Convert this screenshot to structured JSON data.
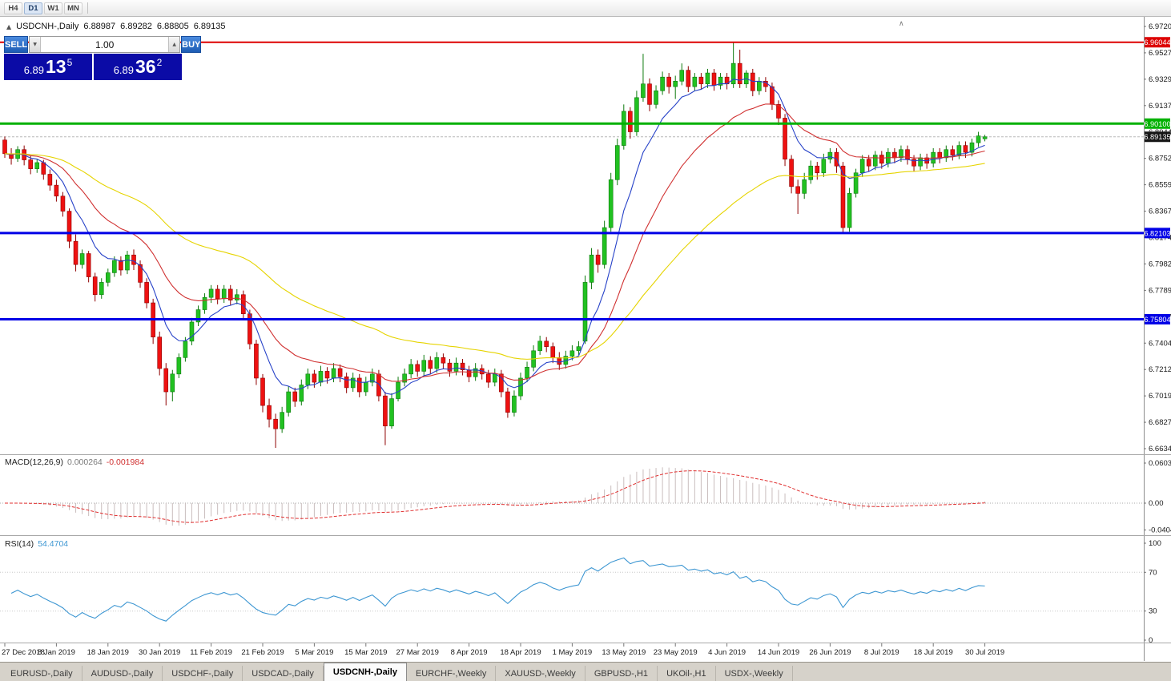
{
  "toolbar": {
    "timeframes": [
      "H4",
      "D1",
      "W1",
      "MN"
    ],
    "active": "D1"
  },
  "chart_header": {
    "symbol_title": "USDCNH-,Daily",
    "open": "6.88987",
    "high": "6.89282",
    "low": "6.88805",
    "close": "6.89135",
    "collapse_icon": "▲"
  },
  "trade_panel": {
    "sell_label": "SELL",
    "buy_label": "BUY",
    "volume": "1.00",
    "sell_price": {
      "base": "6.89",
      "big": "13",
      "sup": "5"
    },
    "buy_price": {
      "base": "6.89",
      "big": "36",
      "sup": "2"
    },
    "colors": {
      "button_blue": "#2e6fc9",
      "price_box_bg": "#0b0ba6"
    }
  },
  "price_axis": {
    "ticks": [
      "6.97200",
      "6.95275",
      "6.93295",
      "6.91370",
      "6.89445",
      "6.87520",
      "6.85595",
      "6.83670",
      "6.81745",
      "6.79820",
      "6.77895",
      "6.75970",
      "6.74045",
      "6.72120",
      "6.70195",
      "6.68270",
      "6.66345"
    ]
  },
  "levels": [
    {
      "value": 6.96044,
      "label": "6.96044",
      "color": "#dd0000",
      "line_width": 2
    },
    {
      "value": 6.901,
      "label": "6.90100",
      "color": "#00b100",
      "line_width": 3
    },
    {
      "value": 6.82103,
      "label": "6.82103",
      "color": "#0000e6",
      "line_width": 3
    },
    {
      "value": 6.75804,
      "label": "6.75804",
      "color": "#0000e6",
      "line_width": 3
    }
  ],
  "current_price": {
    "value": 6.89135,
    "label": "6.89135",
    "badge_bg": "#161616"
  },
  "indicators": {
    "moving_averages": [
      {
        "period": 8,
        "color": "#2742c8"
      },
      {
        "period": 20,
        "color": "#d03030"
      },
      {
        "period": 50,
        "color": "#e6d400"
      }
    ],
    "macd": {
      "label": "MACD(12,26,9)",
      "main_value": "0.000264",
      "signal_value": "-0.001984",
      "fast": 12,
      "slow": 26,
      "signal": 9,
      "hist_color": "#c9bdbd",
      "signal_color": "#e03030",
      "axis_labels": [
        "0.060342",
        "0.00",
        "-0.040415"
      ],
      "axis_max": 0.060342,
      "axis_min": -0.040415
    },
    "rsi": {
      "label": "RSI(14)",
      "value": "54.4704",
      "period": 14,
      "color": "#3c96d2",
      "levels": [
        70,
        30
      ],
      "axis_labels": [
        "100",
        "70",
        "30",
        "0"
      ]
    }
  },
  "chart_data": {
    "type": "candlestick",
    "title": "USDCNH-,Daily",
    "up_color": "#21c121",
    "down_color": "#ee1111",
    "up_border": "#0e7a0e",
    "down_border": "#8f0000",
    "label_step": 8,
    "date_labels": [
      "27 Dec 2018",
      "8 Jan 2019",
      "18 Jan 2019",
      "30 Jan 2019",
      "11 Feb 2019",
      "21 Feb 2019",
      "5 Mar 2019",
      "15 Mar 2019",
      "27 Mar 2019",
      "8 Apr 2019",
      "18 Apr 2019",
      "1 May 2019",
      "13 May 2019",
      "23 May 2019",
      "4 Jun 2019",
      "14 Jun 2019",
      "26 Jun 2019",
      "8 Jul 2019",
      "18 Jul 2019",
      "30 Jul 2019"
    ],
    "ylim": [
      6.66345,
      6.972
    ],
    "candles": [
      [
        6.889,
        6.8915,
        6.876,
        6.879
      ],
      [
        6.879,
        6.883,
        6.871,
        6.8755
      ],
      [
        6.8755,
        6.8845,
        6.873,
        6.882
      ],
      [
        6.882,
        6.885,
        6.8705,
        6.8745
      ],
      [
        6.8745,
        6.8775,
        6.864,
        6.868
      ],
      [
        6.868,
        6.875,
        6.865,
        6.8725
      ],
      [
        6.8725,
        6.8745,
        6.86,
        6.864
      ],
      [
        6.864,
        6.8675,
        6.852,
        6.856
      ],
      [
        6.856,
        6.86,
        6.844,
        6.848
      ],
      [
        6.848,
        6.851,
        6.833,
        6.837
      ],
      [
        6.837,
        6.839,
        6.81,
        6.815
      ],
      [
        6.815,
        6.82,
        6.793,
        6.798
      ],
      [
        6.798,
        6.809,
        6.795,
        6.806
      ],
      [
        6.806,
        6.808,
        6.785,
        6.789
      ],
      [
        6.789,
        6.792,
        6.771,
        6.776
      ],
      [
        6.776,
        6.788,
        6.773,
        6.785
      ],
      [
        6.785,
        6.795,
        6.782,
        6.792
      ],
      [
        6.792,
        6.804,
        6.789,
        6.801
      ],
      [
        6.801,
        6.804,
        6.79,
        6.794
      ],
      [
        6.794,
        6.808,
        6.791,
        6.805
      ],
      [
        6.805,
        6.809,
        6.794,
        6.798
      ],
      [
        6.798,
        6.801,
        6.781,
        6.785
      ],
      [
        6.785,
        6.788,
        6.766,
        6.77
      ],
      [
        6.77,
        6.773,
        6.74,
        6.745
      ],
      [
        6.745,
        6.749,
        6.717,
        6.722
      ],
      [
        6.722,
        6.726,
        6.695,
        6.705
      ],
      [
        6.705,
        6.721,
        6.698,
        6.718
      ],
      [
        6.718,
        6.733,
        6.715,
        6.73
      ],
      [
        6.73,
        6.745,
        6.727,
        6.742
      ],
      [
        6.742,
        6.759,
        6.739,
        6.756
      ],
      [
        6.756,
        6.768,
        6.753,
        6.765
      ],
      [
        6.765,
        6.777,
        6.762,
        6.774
      ],
      [
        6.774,
        6.783,
        6.77,
        6.78
      ],
      [
        6.78,
        6.783,
        6.769,
        6.773
      ],
      [
        6.773,
        6.783,
        6.77,
        6.78
      ],
      [
        6.78,
        6.783,
        6.768,
        6.772
      ],
      [
        6.772,
        6.78,
        6.769,
        6.776
      ],
      [
        6.776,
        6.779,
        6.758,
        6.762
      ],
      [
        6.762,
        6.765,
        6.736,
        6.74
      ],
      [
        6.74,
        6.743,
        6.71,
        6.715
      ],
      [
        6.715,
        6.718,
        6.69,
        6.695
      ],
      [
        6.695,
        6.7,
        6.679,
        6.685
      ],
      [
        6.685,
        6.689,
        6.664,
        6.678
      ],
      [
        6.678,
        6.694,
        6.675,
        6.69
      ],
      [
        6.69,
        6.709,
        6.687,
        6.705
      ],
      [
        6.705,
        6.708,
        6.694,
        6.698
      ],
      [
        6.698,
        6.714,
        6.695,
        6.71
      ],
      [
        6.71,
        6.722,
        6.707,
        6.718
      ],
      [
        6.718,
        6.721,
        6.708,
        6.712
      ],
      [
        6.712,
        6.724,
        6.709,
        6.72
      ],
      [
        6.72,
        6.723,
        6.711,
        6.715
      ],
      [
        6.715,
        6.726,
        6.712,
        6.722
      ],
      [
        6.722,
        6.725,
        6.712,
        6.716
      ],
      [
        6.716,
        6.719,
        6.704,
        6.708
      ],
      [
        6.708,
        6.719,
        6.705,
        6.715
      ],
      [
        6.715,
        6.718,
        6.701,
        6.705
      ],
      [
        6.705,
        6.716,
        6.702,
        6.712
      ],
      [
        6.712,
        6.722,
        6.709,
        6.718
      ],
      [
        6.718,
        6.721,
        6.698,
        6.702
      ],
      [
        6.702,
        6.705,
        6.666,
        6.68
      ],
      [
        6.68,
        6.704,
        6.678,
        6.7
      ],
      [
        6.7,
        6.716,
        6.698,
        6.712
      ],
      [
        6.712,
        6.722,
        6.709,
        6.718
      ],
      [
        6.718,
        6.729,
        6.715,
        6.725
      ],
      [
        6.725,
        6.728,
        6.716,
        6.72
      ],
      [
        6.72,
        6.732,
        6.717,
        6.728
      ],
      [
        6.728,
        6.731,
        6.718,
        6.722
      ],
      [
        6.722,
        6.734,
        6.719,
        6.73
      ],
      [
        6.73,
        6.733,
        6.722,
        6.726
      ],
      [
        6.726,
        6.729,
        6.716,
        6.72
      ],
      [
        6.72,
        6.73,
        6.717,
        6.726
      ],
      [
        6.726,
        6.729,
        6.717,
        6.721
      ],
      [
        6.721,
        6.724,
        6.712,
        6.716
      ],
      [
        6.716,
        6.726,
        6.713,
        6.722
      ],
      [
        6.722,
        6.725,
        6.714,
        6.718
      ],
      [
        6.718,
        6.721,
        6.708,
        6.712
      ],
      [
        6.712,
        6.722,
        6.709,
        6.718
      ],
      [
        6.718,
        6.721,
        6.701,
        6.705
      ],
      [
        6.705,
        6.708,
        6.686,
        6.69
      ],
      [
        6.69,
        6.706,
        6.687,
        6.702
      ],
      [
        6.702,
        6.719,
        6.699,
        6.715
      ],
      [
        6.715,
        6.727,
        6.712,
        6.723
      ],
      [
        6.723,
        6.739,
        6.72,
        6.735
      ],
      [
        6.735,
        6.746,
        6.732,
        6.742
      ],
      [
        6.742,
        6.745,
        6.734,
        6.738
      ],
      [
        6.738,
        6.741,
        6.726,
        6.73
      ],
      [
        6.73,
        6.734,
        6.721,
        6.725
      ],
      [
        6.725,
        6.735,
        6.722,
        6.731
      ],
      [
        6.731,
        6.739,
        6.728,
        6.735
      ],
      [
        6.735,
        6.742,
        6.732,
        6.738
      ],
      [
        6.742,
        6.79,
        6.74,
        6.785
      ],
      [
        6.785,
        6.81,
        6.78,
        6.805
      ],
      [
        6.805,
        6.809,
        6.792,
        6.798
      ],
      [
        6.798,
        6.83,
        6.795,
        6.825
      ],
      [
        6.825,
        6.865,
        6.822,
        6.86
      ],
      [
        6.86,
        6.89,
        6.856,
        6.885
      ],
      [
        6.885,
        6.915,
        6.882,
        6.91
      ],
      [
        6.91,
        6.913,
        6.89,
        6.895
      ],
      [
        6.895,
        6.925,
        6.892,
        6.92
      ],
      [
        6.92,
        6.952,
        6.917,
        6.93
      ],
      [
        6.93,
        6.934,
        6.91,
        6.915
      ],
      [
        6.915,
        6.929,
        6.912,
        6.925
      ],
      [
        6.925,
        6.939,
        6.922,
        6.935
      ],
      [
        6.935,
        6.938,
        6.923,
        6.928
      ],
      [
        6.928,
        6.936,
        6.919,
        6.932
      ],
      [
        6.932,
        6.945,
        6.929,
        6.94
      ],
      [
        6.94,
        6.943,
        6.924,
        6.928
      ],
      [
        6.928,
        6.938,
        6.925,
        6.935
      ],
      [
        6.935,
        6.938,
        6.926,
        6.93
      ],
      [
        6.93,
        6.941,
        6.927,
        6.938
      ],
      [
        6.938,
        6.941,
        6.925,
        6.929
      ],
      [
        6.929,
        6.938,
        6.926,
        6.935
      ],
      [
        6.935,
        6.938,
        6.926,
        6.93
      ],
      [
        6.93,
        6.9605,
        6.927,
        6.945
      ],
      [
        6.945,
        6.955,
        6.927,
        6.93
      ],
      [
        6.93,
        6.94,
        6.927,
        6.938
      ],
      [
        6.938,
        6.941,
        6.921,
        6.925
      ],
      [
        6.925,
        6.935,
        6.922,
        6.932
      ],
      [
        6.932,
        6.935,
        6.924,
        6.928
      ],
      [
        6.928,
        6.931,
        6.911,
        6.915
      ],
      [
        6.915,
        6.918,
        6.9,
        6.905
      ],
      [
        6.905,
        6.908,
        6.87,
        6.875
      ],
      [
        6.875,
        6.878,
        6.85,
        6.855
      ],
      [
        6.855,
        6.86,
        6.835,
        6.85
      ],
      [
        6.85,
        6.865,
        6.846,
        6.86
      ],
      [
        6.86,
        6.874,
        6.857,
        6.87
      ],
      [
        6.87,
        6.873,
        6.86,
        6.865
      ],
      [
        6.865,
        6.879,
        6.862,
        6.875
      ],
      [
        6.875,
        6.883,
        6.872,
        6.88
      ],
      [
        6.88,
        6.883,
        6.865,
        6.87
      ],
      [
        6.87,
        6.873,
        6.8215,
        6.825
      ],
      [
        6.825,
        6.854,
        6.822,
        6.85
      ],
      [
        6.85,
        6.868,
        6.847,
        6.865
      ],
      [
        6.865,
        6.878,
        6.862,
        6.875
      ],
      [
        6.875,
        6.878,
        6.866,
        6.87
      ],
      [
        6.87,
        6.881,
        6.867,
        6.878
      ],
      [
        6.878,
        6.881,
        6.868,
        6.872
      ],
      [
        6.872,
        6.883,
        6.869,
        6.88
      ],
      [
        6.88,
        6.883,
        6.872,
        6.876
      ],
      [
        6.876,
        6.885,
        6.873,
        6.882
      ],
      [
        6.882,
        6.885,
        6.871,
        6.875
      ],
      [
        6.875,
        6.878,
        6.866,
        6.87
      ],
      [
        6.87,
        6.879,
        6.867,
        6.876
      ],
      [
        6.876,
        6.879,
        6.868,
        6.872
      ],
      [
        6.872,
        6.883,
        6.869,
        6.88
      ],
      [
        6.88,
        6.883,
        6.872,
        6.876
      ],
      [
        6.876,
        6.885,
        6.873,
        6.882
      ],
      [
        6.882,
        6.885,
        6.874,
        6.878
      ],
      [
        6.878,
        6.888,
        6.875,
        6.885
      ],
      [
        6.885,
        6.888,
        6.876,
        6.88
      ],
      [
        6.88,
        6.89,
        6.877,
        6.887
      ],
      [
        6.887,
        6.895,
        6.884,
        6.892
      ],
      [
        6.88987,
        6.89282,
        6.88805,
        6.89135
      ]
    ]
  },
  "tabs": {
    "active_index": 4,
    "items": [
      "EURUSD-,Daily",
      "AUDUSD-,Daily",
      "USDCHF-,Daily",
      "USDCAD-,Daily",
      "USDCNH-,Daily",
      "EURCHF-,Weekly",
      "XAUUSD-,Weekly",
      "GBPUSD-,H1",
      "UKOil-,H1",
      "USDX-,Weekly"
    ]
  }
}
